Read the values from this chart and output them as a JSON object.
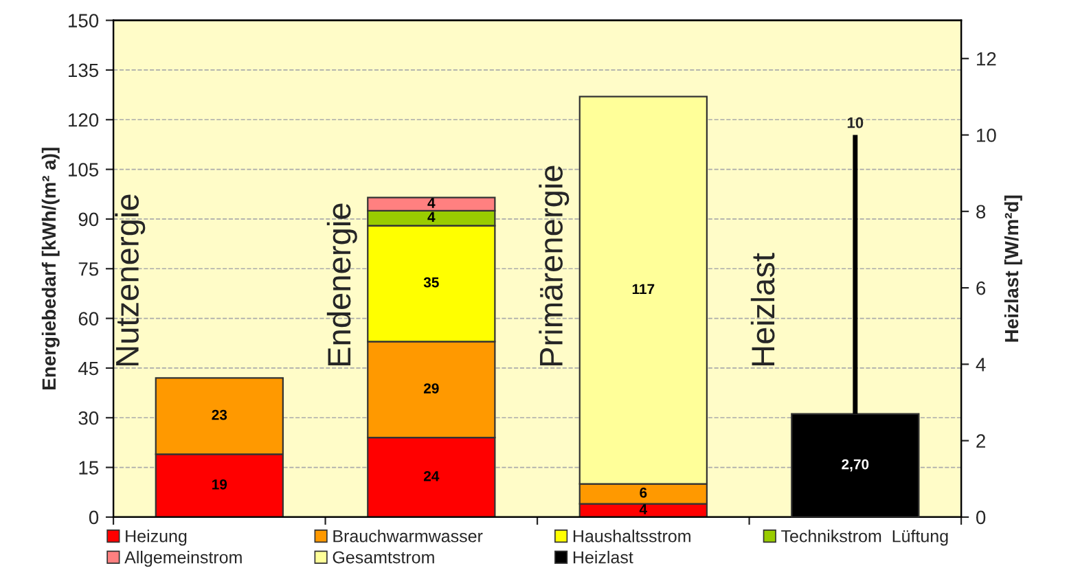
{
  "chart_data": {
    "type": "bar",
    "stacked": true,
    "categories": [
      "Nutzenergie",
      "Endenergie",
      "Primärenergie",
      "Heizlast"
    ],
    "ylabel": "Energiebedarf [kWh/(m² a)]",
    "y2label": "Heizlast [W/m²d]",
    "ylim": [
      0,
      150
    ],
    "yticks": [
      0,
      15,
      30,
      45,
      60,
      75,
      90,
      105,
      120,
      135,
      150
    ],
    "y2lim": [
      0,
      13
    ],
    "y2ticks": [
      0,
      2,
      4,
      6,
      8,
      10,
      12
    ],
    "grid": "y",
    "legend": "bottom",
    "tick_labels": "y",
    "series": [
      {
        "name": "Heizung",
        "color": "#ff0000",
        "values": [
          19,
          24,
          4,
          null
        ],
        "value_labels": [
          "19",
          "24",
          "4",
          null
        ]
      },
      {
        "name": "Brauchwarmwasser",
        "color": "#ff9900",
        "values": [
          23,
          29,
          6,
          null
        ],
        "value_labels": [
          "23",
          "29",
          "6",
          null
        ]
      },
      {
        "name": "Haushaltsstrom",
        "color": "#ffff00",
        "values": [
          null,
          35,
          null,
          null
        ],
        "value_labels": [
          null,
          "35",
          null,
          null
        ]
      },
      {
        "name": "Technikstrom  Lüftung",
        "color": "#99cc00",
        "values": [
          null,
          4.5,
          null,
          null
        ],
        "value_labels": [
          null,
          "4",
          null,
          null
        ]
      },
      {
        "name": "Allgemeinstrom",
        "color": "#ff8080",
        "values": [
          null,
          4,
          null,
          null
        ],
        "value_labels": [
          null,
          "4",
          null,
          null
        ]
      },
      {
        "name": "Gesamtstrom",
        "color": "#ffff99",
        "values": [
          null,
          null,
          117,
          null
        ],
        "value_labels": [
          null,
          null,
          "117",
          null
        ]
      },
      {
        "name": "Heizlast",
        "color": "#000000",
        "axis": "y2",
        "values": [
          null,
          null,
          null,
          2.7
        ],
        "value_labels": [
          null,
          null,
          null,
          "2,70"
        ],
        "errors": [
          null,
          null,
          null,
          [
            2.7,
            10
          ]
        ]
      }
    ],
    "annotations": [
      "10"
    ]
  }
}
